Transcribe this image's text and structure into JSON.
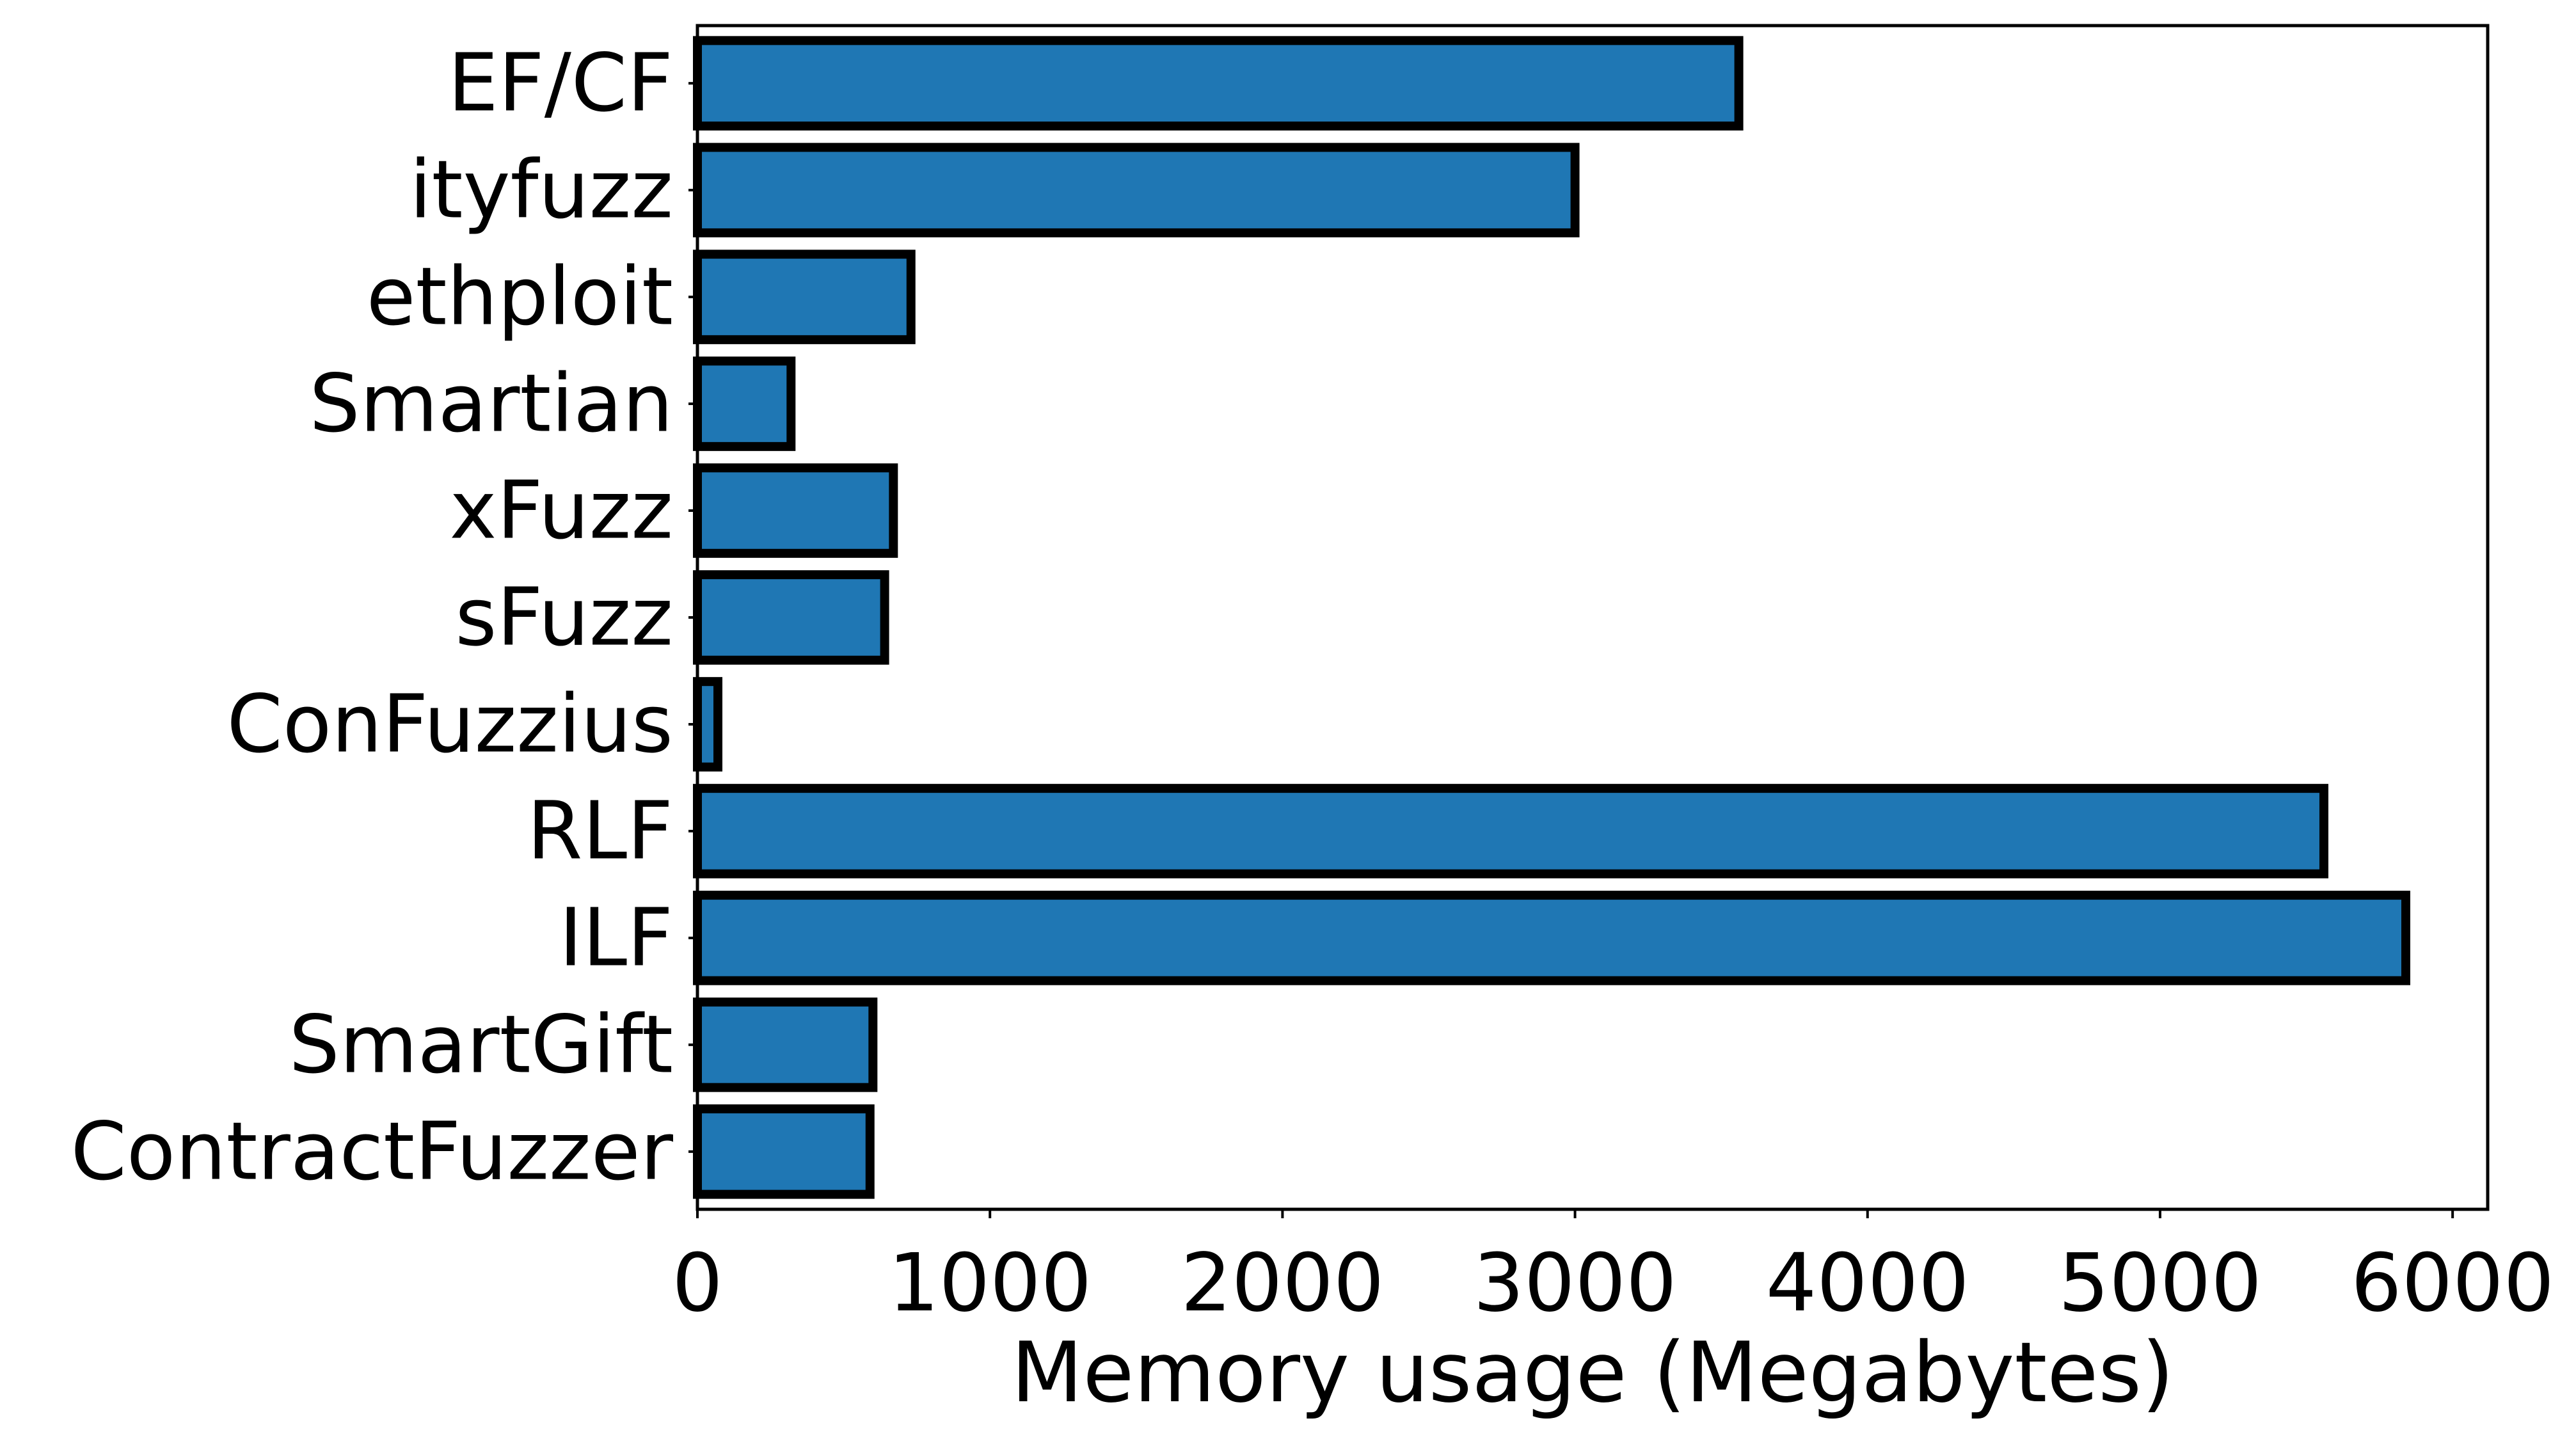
{
  "chart_data": {
    "type": "bar",
    "orientation": "horizontal",
    "title": "",
    "xlabel": "Memory usage (Megabytes)",
    "ylabel": "",
    "xlim": [
      0,
      6120
    ],
    "xticks": [
      0,
      1000,
      2000,
      3000,
      4000,
      5000,
      6000
    ],
    "grid": false,
    "categories": [
      "EF/CF",
      "ityfuzz",
      "ethploit",
      "Smartian",
      "xFuzz",
      "sFuzz",
      "ConFuzzius",
      "RLF",
      "ILF",
      "SmartGift",
      "ContractFuzzer"
    ],
    "values": [
      3560,
      3000,
      730,
      320,
      670,
      640,
      70,
      5560,
      5840,
      600,
      590
    ],
    "colors": {
      "bar_fill": "#1f77b4",
      "bar_edge": "#000000",
      "axis": "#000000"
    }
  }
}
